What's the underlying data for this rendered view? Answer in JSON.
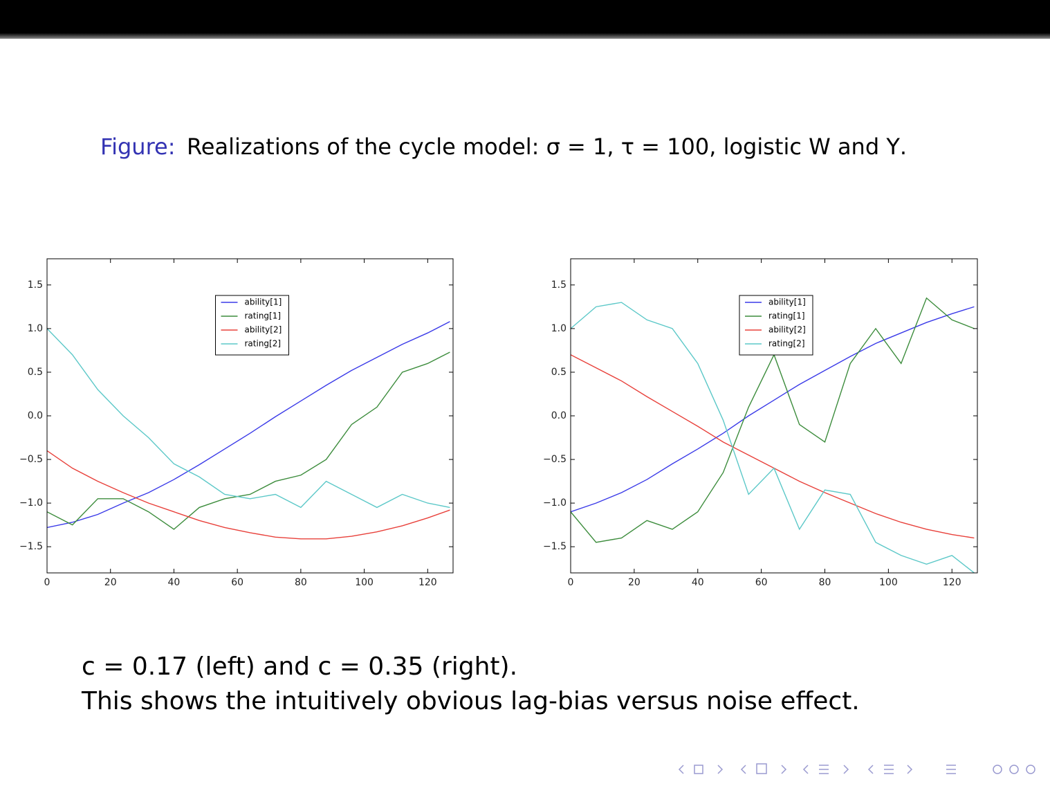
{
  "slide": {
    "figure_label": "Figure:",
    "caption": "Realizations of the cycle model: σ = 1,  τ = 100, logistic W and Υ.",
    "lines": [
      "c = 0.17 (left) and c = 0.35 (right).",
      "This shows the intuitively obvious lag-bias versus noise effect."
    ]
  },
  "chart_data": [
    {
      "type": "line",
      "x": [
        0,
        8,
        16,
        24,
        32,
        40,
        48,
        56,
        64,
        72,
        80,
        88,
        96,
        104,
        112,
        120,
        127
      ],
      "xlim": [
        0,
        128
      ],
      "ylim": [
        -1.8,
        1.8
      ],
      "xticks": [
        0,
        20,
        40,
        60,
        80,
        100,
        120
      ],
      "yticks": [
        {
          "value": -1.5,
          "label": "−1.5"
        },
        {
          "value": -1.0,
          "label": "−1.0"
        },
        {
          "value": -0.5,
          "label": "−0.5"
        },
        {
          "value": 0.0,
          "label": "0.0"
        },
        {
          "value": 0.5,
          "label": "0.5"
        },
        {
          "value": 1.0,
          "label": "1.0"
        },
        {
          "value": 1.5,
          "label": "1.5"
        }
      ],
      "grid": false,
      "legend": "upper center",
      "series": [
        {
          "name": "ability[1]",
          "color": "#3a3ae8",
          "values": [
            -1.28,
            -1.22,
            -1.13,
            -1.0,
            -0.88,
            -0.73,
            -0.56,
            -0.38,
            -0.2,
            -0.01,
            0.17,
            0.35,
            0.52,
            0.67,
            0.82,
            0.95,
            1.08
          ]
        },
        {
          "name": "rating[1]",
          "color": "#3c8c3c",
          "values": [
            -1.1,
            -1.25,
            -0.95,
            -0.95,
            -1.1,
            -1.3,
            -1.05,
            -0.95,
            -0.9,
            -0.75,
            -0.68,
            -0.5,
            -0.1,
            0.1,
            0.5,
            0.6,
            0.73
          ]
        },
        {
          "name": "ability[2]",
          "color": "#e8403a",
          "values": [
            -0.4,
            -0.6,
            -0.75,
            -0.88,
            -1.0,
            -1.1,
            -1.2,
            -1.28,
            -1.34,
            -1.39,
            -1.41,
            -1.41,
            -1.38,
            -1.33,
            -1.26,
            -1.17,
            -1.08
          ]
        },
        {
          "name": "rating[2]",
          "color": "#5cc8c8",
          "values": [
            1.0,
            0.7,
            0.3,
            0.0,
            -0.25,
            -0.55,
            -0.7,
            -0.9,
            -0.95,
            -0.9,
            -1.05,
            -0.75,
            -0.9,
            -1.05,
            -0.9,
            -1.0,
            -1.05
          ]
        }
      ]
    },
    {
      "type": "line",
      "x": [
        0,
        8,
        16,
        24,
        32,
        40,
        48,
        56,
        64,
        72,
        80,
        88,
        96,
        104,
        112,
        120,
        127
      ],
      "xlim": [
        0,
        128
      ],
      "ylim": [
        -1.8,
        1.8
      ],
      "xticks": [
        0,
        20,
        40,
        60,
        80,
        100,
        120
      ],
      "yticks": [
        {
          "value": -1.5,
          "label": "−1.5"
        },
        {
          "value": -1.0,
          "label": "−1.0"
        },
        {
          "value": -0.5,
          "label": "−0.5"
        },
        {
          "value": 0.0,
          "label": "0.0"
        },
        {
          "value": 0.5,
          "label": "0.5"
        },
        {
          "value": 1.0,
          "label": "1.0"
        },
        {
          "value": 1.5,
          "label": "1.5"
        }
      ],
      "grid": false,
      "legend": "upper center",
      "series": [
        {
          "name": "ability[1]",
          "color": "#3a3ae8",
          "values": [
            -1.1,
            -1.0,
            -0.88,
            -0.73,
            -0.55,
            -0.38,
            -0.2,
            0.0,
            0.18,
            0.36,
            0.52,
            0.68,
            0.83,
            0.95,
            1.07,
            1.17,
            1.25
          ]
        },
        {
          "name": "rating[1]",
          "color": "#3c8c3c",
          "values": [
            -1.1,
            -1.45,
            -1.4,
            -1.2,
            -1.3,
            -1.1,
            -0.65,
            0.1,
            0.7,
            -0.1,
            -0.3,
            0.6,
            1.0,
            0.6,
            1.35,
            1.1,
            1.0
          ]
        },
        {
          "name": "ability[2]",
          "color": "#e8403a",
          "values": [
            0.7,
            0.55,
            0.4,
            0.22,
            0.05,
            -0.12,
            -0.3,
            -0.45,
            -0.6,
            -0.75,
            -0.88,
            -1.0,
            -1.12,
            -1.22,
            -1.3,
            -1.36,
            -1.4
          ]
        },
        {
          "name": "rating[2]",
          "color": "#5cc8c8",
          "values": [
            1.0,
            1.25,
            1.3,
            1.1,
            1.0,
            0.6,
            -0.05,
            -0.9,
            -0.6,
            -1.3,
            -0.85,
            -0.9,
            -1.45,
            -1.6,
            -1.7,
            -1.6,
            -1.8
          ]
        }
      ]
    }
  ]
}
